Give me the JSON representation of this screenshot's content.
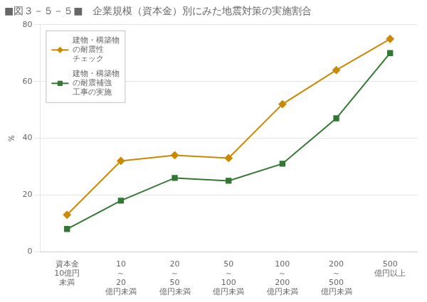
{
  "chart_data": {
    "type": "line",
    "title": "■図３－５－５■　企業規模（資本金）別にみた地震対策の実施割合",
    "y_label": "％",
    "categories": [
      "資本金\n10億円\n未満",
      "10\n～\n20\n億円未満",
      "20\n～\n50\n億円未満",
      "50\n～\n100\n億円未満",
      "100\n～\n200\n億円未満",
      "200\n～\n500\n億円未満",
      "500\n億円以上"
    ],
    "series": [
      {
        "name": "建物・構築物\nの耐震性\nチェック",
        "color": "#cc8800",
        "marker": "diamond",
        "values": [
          13,
          32,
          34,
          33,
          52,
          64,
          75
        ]
      },
      {
        "name": "建物・構築物\nの耐震補強\n工事の実施",
        "color": "#337733",
        "marker": "square",
        "values": [
          8,
          18,
          26,
          25,
          31,
          47,
          70
        ]
      }
    ],
    "ylim": [
      0,
      80
    ],
    "yticks": [
      0,
      20,
      40,
      60,
      80
    ],
    "grid": true,
    "legend": "upper left"
  }
}
